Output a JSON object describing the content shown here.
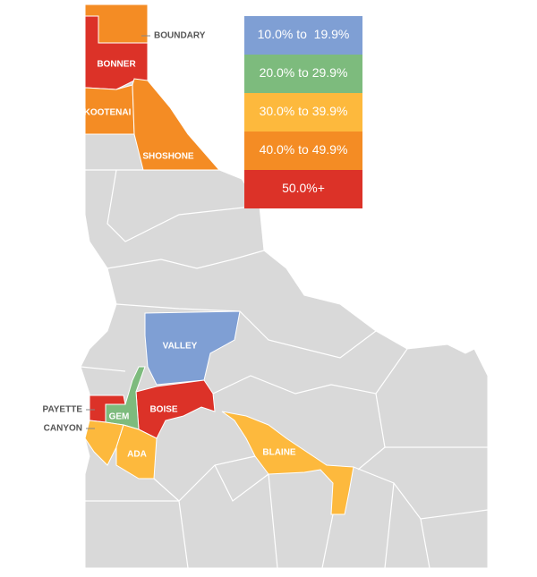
{
  "legend": {
    "items": [
      {
        "label": "10.0% to  19.9%",
        "color": "#7f9fd4"
      },
      {
        "label": "20.0% to 29.9%",
        "color": "#7dbb7d"
      },
      {
        "label": "30.0% to 39.9%",
        "color": "#fdb93d"
      },
      {
        "label": "40.0% to 49.9%",
        "color": "#f48c24"
      },
      {
        "label": "50.0%+",
        "color": "#dc3228"
      }
    ]
  },
  "base_color": "#d9d9d9",
  "counties": [
    {
      "label": "BOUNDARY",
      "color": "#f48c24"
    },
    {
      "label": "BONNER",
      "color": "#dc3228"
    },
    {
      "label": "KOOTENAI",
      "color": "#f48c24"
    },
    {
      "label": "SHOSHONE",
      "color": "#f48c24"
    },
    {
      "label": "VALLEY",
      "color": "#7f9fd4"
    },
    {
      "label": "BOISE",
      "color": "#dc3228"
    },
    {
      "label": "GEM",
      "color": "#7dbb7d"
    },
    {
      "label": "PAYETTE",
      "color": "#dc3228"
    },
    {
      "label": "CANYON",
      "color": "#fdb93d"
    },
    {
      "label": "ADA",
      "color": "#fdb93d"
    },
    {
      "label": "BLAINE",
      "color": "#fdb93d"
    }
  ]
}
